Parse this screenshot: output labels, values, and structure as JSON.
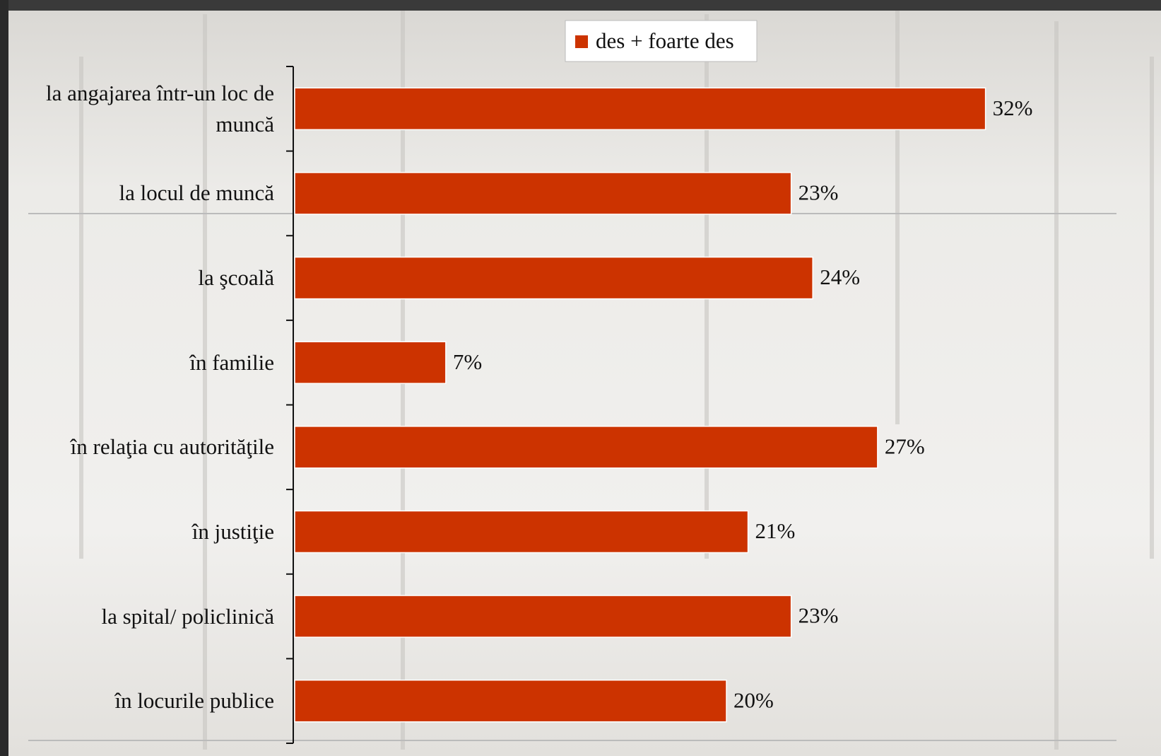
{
  "chart_data": {
    "type": "bar",
    "orientation": "horizontal",
    "categories": [
      "la angajarea într-un loc de muncă",
      "la locul de muncă",
      "la şcoală",
      "în familie",
      "în relaţia cu autorităţile",
      "în justiţie",
      "la spital/ policlinică",
      "în locurile publice"
    ],
    "series": [
      {
        "name": "des + foarte des",
        "color": "#cc3300",
        "values": [
          32,
          23,
          24,
          7,
          27,
          21,
          23,
          20
        ],
        "value_labels": [
          "32%",
          "23%",
          "24%",
          "7%",
          "27%",
          "21%",
          "23%",
          "20%"
        ]
      }
    ],
    "xlim": [
      0,
      40
    ],
    "legend": "top"
  }
}
